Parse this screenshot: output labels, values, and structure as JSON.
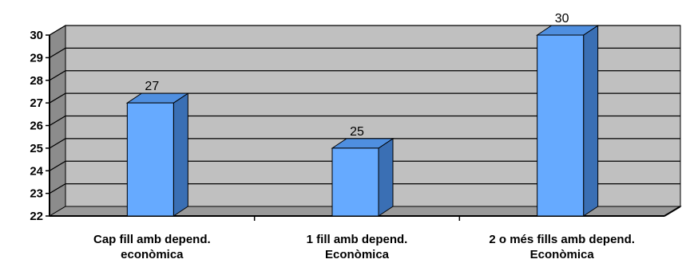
{
  "chart_data": {
    "type": "bar",
    "title": "",
    "xlabel": "",
    "ylabel": "",
    "categories": [
      [
        "Cap fill amb depend.",
        "econòmica"
      ],
      [
        "1 fill amb depend.",
        "Econòmica"
      ],
      [
        "2 o més fills amb depend.",
        "Econòmica"
      ]
    ],
    "values": [
      27,
      25,
      30
    ],
    "data_labels": [
      "27",
      "25",
      "30"
    ],
    "yticks": [
      "22",
      "23",
      "24",
      "25",
      "26",
      "27",
      "28",
      "29",
      "30"
    ],
    "ylim": [
      22,
      30
    ],
    "grid": true,
    "legend": "none",
    "colors": {
      "bar_front": "#66aaff",
      "bar_side": "#3a6fb4",
      "bar_top": "#4f8fe0",
      "wall": "#c0c0c0",
      "wall_side": "#8c8c8c",
      "floor": "#9a9a9a",
      "grid": "#000000"
    }
  }
}
